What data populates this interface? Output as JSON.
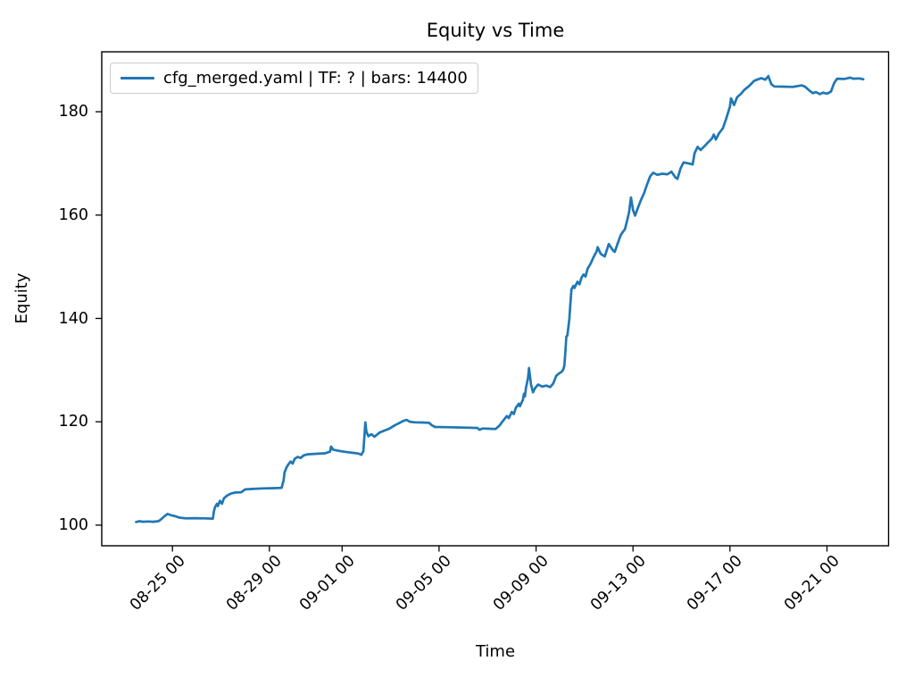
{
  "colors": {
    "series_line": "#1f77b4",
    "axes_text": "#000000",
    "spine": "#000000",
    "legend_border": "#cccccc",
    "background": "#ffffff"
  },
  "legend": {
    "label": "cfg_merged.yaml | TF: ? | bars: 14400",
    "position": "upper left"
  },
  "chart_data": {
    "type": "line",
    "title": "Equity vs Time",
    "xlabel": "Time",
    "ylabel": "Equity",
    "grid": false,
    "legend_position": "upper left",
    "x_tick_labels": [
      "08-25 00",
      "08-29 00",
      "09-01 00",
      "09-05 00",
      "09-09 00",
      "09-13 00",
      "09-17 00",
      "09-21 00"
    ],
    "y_tick_labels": [
      "100",
      "120",
      "140",
      "160",
      "180"
    ],
    "y_ticks": [
      100,
      120,
      140,
      160,
      180
    ],
    "xlim": [
      "08-22 02",
      "09-23 13"
    ],
    "ylim": [
      96.0,
      191.6
    ],
    "series": [
      {
        "name": "cfg_merged.yaml | TF: ? | bars: 14400",
        "color": "#1f77b4",
        "points": [
          [
            "08-23 12",
            100.6
          ],
          [
            "08-23 15",
            100.75
          ],
          [
            "08-23 19",
            100.65
          ],
          [
            "08-24 00",
            100.7
          ],
          [
            "08-24 05",
            100.65
          ],
          [
            "08-24 10",
            100.75
          ],
          [
            "08-24 12",
            101.0
          ],
          [
            "08-24 16",
            101.7
          ],
          [
            "08-24 19",
            102.15
          ],
          [
            "08-24 23",
            101.9
          ],
          [
            "08-25 02",
            101.75
          ],
          [
            "08-25 07",
            101.45
          ],
          [
            "08-25 13",
            101.3
          ],
          [
            "08-25 22",
            101.35
          ],
          [
            "08-26 07",
            101.3
          ],
          [
            "08-26 16",
            101.25
          ],
          [
            "08-26 17",
            102.6
          ],
          [
            "08-26 18",
            103.4
          ],
          [
            "08-26 20",
            104.1
          ],
          [
            "08-26 21",
            103.7
          ],
          [
            "08-26 23",
            104.7
          ],
          [
            "08-27 01",
            104.15
          ],
          [
            "08-27 03",
            105.2
          ],
          [
            "08-27 06",
            105.7
          ],
          [
            "08-27 10",
            106.1
          ],
          [
            "08-27 14",
            106.3
          ],
          [
            "08-27 20",
            106.35
          ],
          [
            "08-28 00",
            106.9
          ],
          [
            "08-28 07",
            107.0
          ],
          [
            "08-28 17",
            107.1
          ],
          [
            "08-29 05",
            107.15
          ],
          [
            "08-29 12",
            107.2
          ],
          [
            "08-29 14",
            108.6
          ],
          [
            "08-29 15",
            110.2
          ],
          [
            "08-29 17",
            111.2
          ],
          [
            "08-29 19",
            111.8
          ],
          [
            "08-29 21",
            112.3
          ],
          [
            "08-29 23",
            111.9
          ],
          [
            "08-30 01",
            112.8
          ],
          [
            "08-30 04",
            113.2
          ],
          [
            "08-30 07",
            113.0
          ],
          [
            "08-30 10",
            113.5
          ],
          [
            "08-30 14",
            113.7
          ],
          [
            "08-30 23",
            113.8
          ],
          [
            "08-31 07",
            113.9
          ],
          [
            "08-31 12",
            114.2
          ],
          [
            "08-31 13",
            115.2
          ],
          [
            "08-31 15",
            114.6
          ],
          [
            "08-31 20",
            114.4
          ],
          [
            "09-01 02",
            114.2
          ],
          [
            "09-01 10",
            114.0
          ],
          [
            "09-01 16",
            113.85
          ],
          [
            "09-01 19",
            113.6
          ],
          [
            "09-01 21",
            114.3
          ],
          [
            "09-01 22",
            117.0
          ],
          [
            "09-01 23",
            119.9
          ],
          [
            "09-02 00",
            118.1
          ],
          [
            "09-02 02",
            117.2
          ],
          [
            "09-02 05",
            117.6
          ],
          [
            "09-02 08",
            117.1
          ],
          [
            "09-02 13",
            117.9
          ],
          [
            "09-02 18",
            118.3
          ],
          [
            "09-02 23",
            118.7
          ],
          [
            "09-03 04",
            119.3
          ],
          [
            "09-03 08",
            119.7
          ],
          [
            "09-03 13",
            120.2
          ],
          [
            "09-03 16",
            120.35
          ],
          [
            "09-03 19",
            120.0
          ],
          [
            "09-04 00",
            119.9
          ],
          [
            "09-04 07",
            119.85
          ],
          [
            "09-04 14",
            119.8
          ],
          [
            "09-04 17",
            119.3
          ],
          [
            "09-04 20",
            119.0
          ],
          [
            "09-05 05",
            118.95
          ],
          [
            "09-05 17",
            118.9
          ],
          [
            "09-06 05",
            118.85
          ],
          [
            "09-06 14",
            118.8
          ],
          [
            "09-06 16",
            118.45
          ],
          [
            "09-06 19",
            118.7
          ],
          [
            "09-07 02",
            118.65
          ],
          [
            "09-07 08",
            118.6
          ],
          [
            "09-07 12",
            119.3
          ],
          [
            "09-07 15",
            120.1
          ],
          [
            "09-07 19",
            121.1
          ],
          [
            "09-07 21",
            120.7
          ],
          [
            "09-08 00",
            121.9
          ],
          [
            "09-08 02",
            121.5
          ],
          [
            "09-08 04",
            122.7
          ],
          [
            "09-08 07",
            123.5
          ],
          [
            "09-08 08",
            123.0
          ],
          [
            "09-08 11",
            124.3
          ],
          [
            "09-08 12",
            125.4
          ],
          [
            "09-08 13",
            124.9
          ],
          [
            "09-08 14",
            126.6
          ],
          [
            "09-08 16",
            128.4
          ],
          [
            "09-08 17",
            130.4
          ],
          [
            "09-08 19",
            127.2
          ],
          [
            "09-08 21",
            125.7
          ],
          [
            "09-08 23",
            126.5
          ],
          [
            "09-09 02",
            127.2
          ],
          [
            "09-09 06",
            126.8
          ],
          [
            "09-09 10",
            127.0
          ],
          [
            "09-09 14",
            126.7
          ],
          [
            "09-09 17",
            127.4
          ],
          [
            "09-09 20",
            128.9
          ],
          [
            "09-09 23",
            129.4
          ],
          [
            "09-10 01",
            129.6
          ],
          [
            "09-10 03",
            130.1
          ],
          [
            "09-10 04",
            130.9
          ],
          [
            "09-10 05",
            133.5
          ],
          [
            "09-10 06",
            136.5
          ],
          [
            "09-10 07",
            136.7
          ],
          [
            "09-10 09",
            140.0
          ],
          [
            "09-10 10",
            143.0
          ],
          [
            "09-10 11",
            145.6
          ],
          [
            "09-10 13",
            146.3
          ],
          [
            "09-10 14",
            145.9
          ],
          [
            "09-10 17",
            147.1
          ],
          [
            "09-10 19",
            146.6
          ],
          [
            "09-10 21",
            147.9
          ],
          [
            "09-10 23",
            148.5
          ],
          [
            "09-11 01",
            148.1
          ],
          [
            "09-11 03",
            149.6
          ],
          [
            "09-11 06",
            150.6
          ],
          [
            "09-11 09",
            151.9
          ],
          [
            "09-11 12",
            153.0
          ],
          [
            "09-11 13",
            153.8
          ],
          [
            "09-11 16",
            152.5
          ],
          [
            "09-11 20",
            152.0
          ],
          [
            "09-12 00",
            154.4
          ],
          [
            "09-12 04",
            153.2
          ],
          [
            "09-12 06",
            152.9
          ],
          [
            "09-12 09",
            154.6
          ],
          [
            "09-12 12",
            156.2
          ],
          [
            "09-12 16",
            157.3
          ],
          [
            "09-12 18",
            158.8
          ],
          [
            "09-12 20",
            160.5
          ],
          [
            "09-12 22",
            163.4
          ],
          [
            "09-13 00",
            161.0
          ],
          [
            "09-13 02",
            159.9
          ],
          [
            "09-13 05",
            161.5
          ],
          [
            "09-13 08",
            163.0
          ],
          [
            "09-13 11",
            164.3
          ],
          [
            "09-13 14",
            166.0
          ],
          [
            "09-13 17",
            167.5
          ],
          [
            "09-13 20",
            168.2
          ],
          [
            "09-14 00",
            167.8
          ],
          [
            "09-14 05",
            168.0
          ],
          [
            "09-14 10",
            167.9
          ],
          [
            "09-14 14",
            168.4
          ],
          [
            "09-14 18",
            167.3
          ],
          [
            "09-14 20",
            167.0
          ],
          [
            "09-14 23",
            169.0
          ],
          [
            "09-15 02",
            170.2
          ],
          [
            "09-15 07",
            170.0
          ],
          [
            "09-15 11",
            169.8
          ],
          [
            "09-15 13",
            172.0
          ],
          [
            "09-15 16",
            173.2
          ],
          [
            "09-15 19",
            172.6
          ],
          [
            "09-15 23",
            173.4
          ],
          [
            "09-16 02",
            174.0
          ],
          [
            "09-16 06",
            174.8
          ],
          [
            "09-16 08",
            175.6
          ],
          [
            "09-16 10",
            174.6
          ],
          [
            "09-16 13",
            175.8
          ],
          [
            "09-16 17",
            176.8
          ],
          [
            "09-16 20",
            178.5
          ],
          [
            "09-17 00",
            181.0
          ],
          [
            "09-17 01",
            182.6
          ],
          [
            "09-17 04",
            181.3
          ],
          [
            "09-17 07",
            182.8
          ],
          [
            "09-17 11",
            183.5
          ],
          [
            "09-17 14",
            184.2
          ],
          [
            "09-17 19",
            185.0
          ],
          [
            "09-18 00",
            186.0
          ],
          [
            "09-18 04",
            186.3
          ],
          [
            "09-18 07",
            186.5
          ],
          [
            "09-18 11",
            186.2
          ],
          [
            "09-18 14",
            186.9
          ],
          [
            "09-18 17",
            185.3
          ],
          [
            "09-18 20",
            184.9
          ],
          [
            "09-19 05",
            184.85
          ],
          [
            "09-19 14",
            184.8
          ],
          [
            "09-19 23",
            185.1
          ],
          [
            "09-20 02",
            184.9
          ],
          [
            "09-20 06",
            184.2
          ],
          [
            "09-20 10",
            183.6
          ],
          [
            "09-20 13",
            183.8
          ],
          [
            "09-20 17",
            183.4
          ],
          [
            "09-20 20",
            183.7
          ],
          [
            "09-21 00",
            183.5
          ],
          [
            "09-21 04",
            183.9
          ],
          [
            "09-21 07",
            185.5
          ],
          [
            "09-21 10",
            186.4
          ],
          [
            "09-21 17",
            186.35
          ],
          [
            "09-21 23",
            186.6
          ],
          [
            "09-22 02",
            186.4
          ],
          [
            "09-22 08",
            186.45
          ],
          [
            "09-22 12",
            186.3
          ]
        ]
      }
    ]
  }
}
